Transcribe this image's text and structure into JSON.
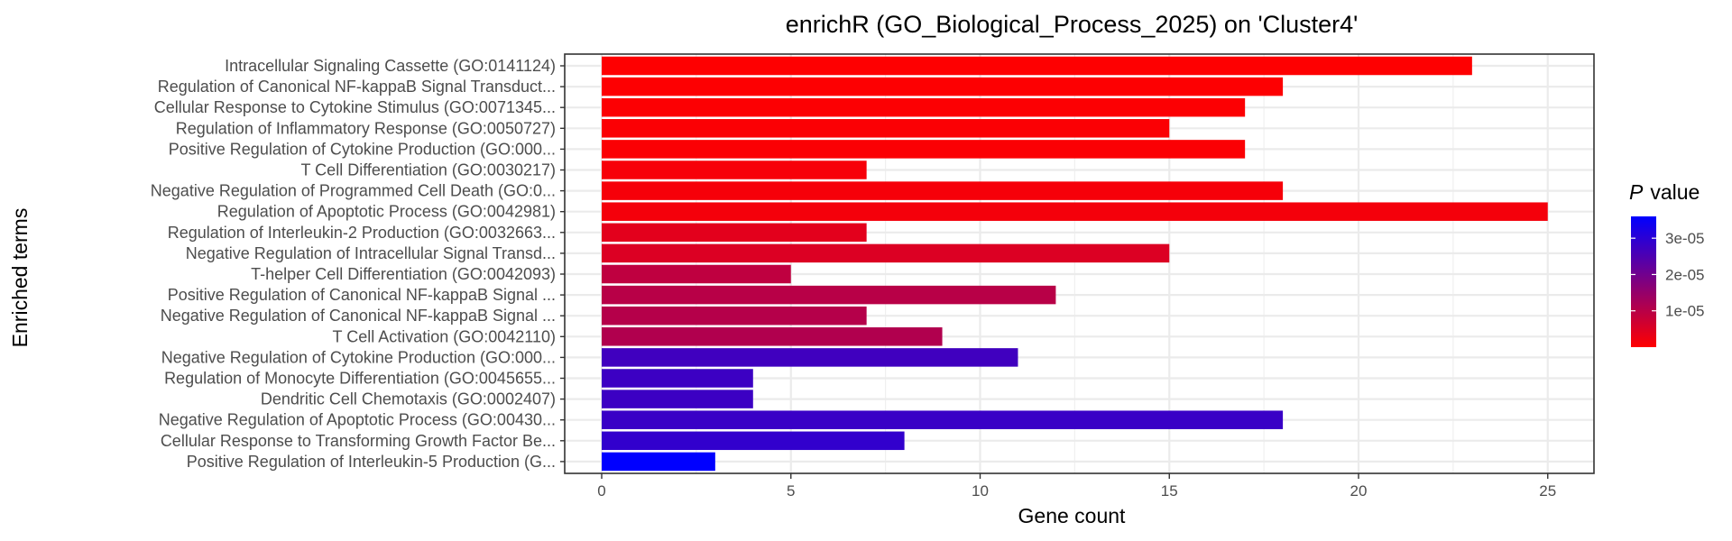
{
  "chart_data": {
    "type": "bar",
    "orientation": "horizontal",
    "title": "enrichR (GO_Biological_Process_2025) on 'Cluster4'",
    "xlabel": "Gene count",
    "ylabel": "Enriched terms",
    "xlim": [
      0,
      26.3
    ],
    "xticks": [
      0,
      5,
      10,
      15,
      20,
      25
    ],
    "grid": true,
    "categories": [
      "Intracellular Signaling Cassette (GO:0141124)",
      "Regulation of Canonical NF-kappaB Signal Transduct...",
      "Cellular Response to Cytokine Stimulus (GO:0071345...",
      "Regulation of Inflammatory Response (GO:0050727)",
      "Positive Regulation of Cytokine Production (GO:000...",
      "T Cell Differentiation (GO:0030217)",
      "Negative Regulation of Programmed Cell Death (GO:0...",
      "Regulation of Apoptotic Process (GO:0042981)",
      "Regulation of Interleukin-2 Production (GO:0032663...",
      "Negative Regulation of Intracellular Signal Transd...",
      "T-helper Cell Differentiation (GO:0042093)",
      "Positive Regulation of Canonical NF-kappaB Signal ...",
      "Negative Regulation of Canonical NF-kappaB Signal ...",
      "T Cell Activation (GO:0042110)",
      "Negative Regulation of Cytokine Production (GO:000...",
      "Regulation of Monocyte Differentiation (GO:0045655...",
      "Dendritic Cell Chemotaxis (GO:0002407)",
      "Negative Regulation of Apoptotic Process (GO:00430...",
      "Cellular Response to Transforming Growth Factor Be...",
      "Positive Regulation of Interleukin-5 Production (G..."
    ],
    "values": [
      23,
      18,
      17,
      15,
      17,
      7,
      18,
      25,
      7,
      15,
      5,
      12,
      7,
      9,
      11,
      4,
      4,
      18,
      8,
      3
    ],
    "p_values": [
      2e-07,
      3e-07,
      4e-07,
      5e-07,
      6e-07,
      1.2e-06,
      1.3e-06,
      1.5e-06,
      4e-06,
      5e-06,
      9e-06,
      1e-05,
      1.05e-05,
      1.1e-05,
      2.7e-05,
      2.75e-05,
      2.75e-05,
      2.8e-05,
      2.9e-05,
      3.6e-05
    ],
    "legend": {
      "title_italic": "P",
      "title_rest": "value",
      "position": "right",
      "range": [
        0,
        3.6e-05
      ],
      "ticks": [
        {
          "value": 1e-05,
          "label": "1e-05"
        },
        {
          "value": 2e-05,
          "label": "2e-05"
        },
        {
          "value": 3e-05,
          "label": "3e-05"
        }
      ],
      "color_low": "#ff0000",
      "color_high": "#0000ff"
    }
  }
}
